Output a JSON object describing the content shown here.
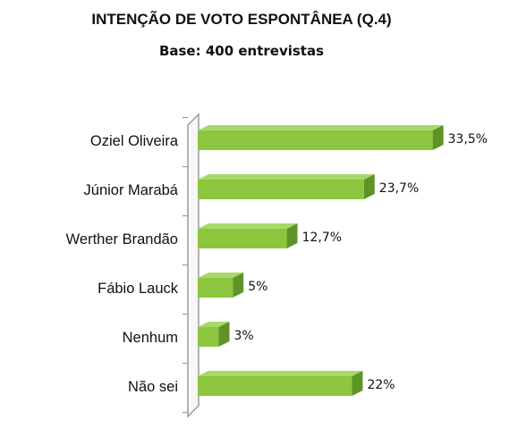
{
  "chart_data": {
    "type": "bar",
    "orientation": "horizontal",
    "title": "INTENÇÃO DE VOTO ESPONTÂNEA (Q.4)",
    "subtitle": "Base: 400 entrevistas",
    "categories": [
      "Oziel Oliveira",
      "Júnior Marabá",
      "Werther Brandão",
      "Fábio Lauck",
      "Nenhum",
      "Não sei"
    ],
    "values": [
      33.5,
      23.7,
      12.7,
      5,
      3,
      22
    ],
    "value_labels": [
      "33,5%",
      "23,7%",
      "12,7%",
      "5%",
      "3%",
      "22%"
    ],
    "xlim": [
      0,
      35
    ],
    "grid": false,
    "legend": "none",
    "bar_color": "#8cc63f",
    "bar_top_color": "#a9d86a",
    "bar_side_color": "#5e9427",
    "axis_color": "#9a9a9a"
  }
}
